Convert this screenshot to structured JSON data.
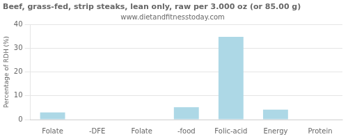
{
  "chart_data": {
    "type": "bar",
    "title": "Beef, grass-fed, strip steaks, lean only, raw per 3.000 oz (or 85.00 g)",
    "subtitle": "www.dietandfitnesstoday.com",
    "ylabel": "Percentage of RDH (%)",
    "categories": [
      "Folate",
      "-DFE",
      "Folate",
      "-food",
      "Folic-acid",
      "Energy",
      "Protein"
    ],
    "values": [
      3.0,
      0.0,
      0.0,
      5.2,
      34.8,
      4.2,
      0.0
    ],
    "color": "#add8e6",
    "ylim": [
      0,
      40
    ],
    "yticks": [
      0,
      10,
      20,
      30,
      40
    ],
    "grid": true
  }
}
